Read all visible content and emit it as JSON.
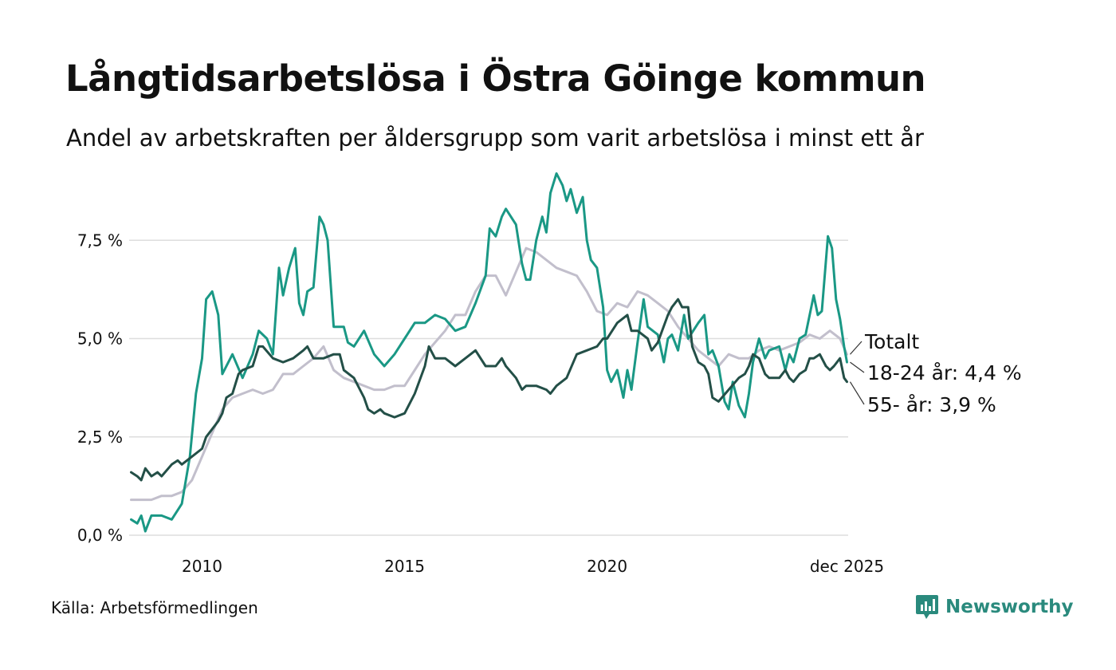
{
  "title": "Långtidsarbetslösa i Östra Göinge kommun",
  "subtitle": "Andel av arbetskraften per åldersgrupp som varit arbetslösa i minst ett år",
  "source": "Källa: Arbetsförmedlingen",
  "brand": "Newsworthy",
  "colors": {
    "brand": "#2a8a7d",
    "grid": "#dddddd"
  },
  "chart_data": {
    "type": "line",
    "xlim": [
      2008.2,
      2025.95
    ],
    "ylim": [
      0,
      9.25
    ],
    "x_ticks": [
      {
        "value": 2010,
        "label": "2010"
      },
      {
        "value": 2015,
        "label": "2015"
      },
      {
        "value": 2020,
        "label": "2020"
      },
      {
        "value": 2025.92,
        "label": "dec 2025"
      }
    ],
    "y_ticks": [
      {
        "value": 0,
        "label": "0,0 %"
      },
      {
        "value": 2.5,
        "label": "2,5 %"
      },
      {
        "value": 5,
        "label": "5,0 %"
      },
      {
        "value": 7.5,
        "label": "7,5 %"
      }
    ],
    "series": [
      {
        "name": "Totalt",
        "label": "Totalt",
        "color": "#c2bfcc",
        "points": [
          [
            2008.25,
            0.9
          ],
          [
            2008.5,
            0.9
          ],
          [
            2008.75,
            0.9
          ],
          [
            2009.0,
            1.0
          ],
          [
            2009.25,
            1.0
          ],
          [
            2009.5,
            1.1
          ],
          [
            2009.75,
            1.4
          ],
          [
            2010.0,
            2.0
          ],
          [
            2010.25,
            2.6
          ],
          [
            2010.5,
            3.2
          ],
          [
            2010.75,
            3.5
          ],
          [
            2011.0,
            3.6
          ],
          [
            2011.25,
            3.7
          ],
          [
            2011.5,
            3.6
          ],
          [
            2011.75,
            3.7
          ],
          [
            2012.0,
            4.1
          ],
          [
            2012.25,
            4.1
          ],
          [
            2012.5,
            4.3
          ],
          [
            2012.75,
            4.5
          ],
          [
            2013.0,
            4.8
          ],
          [
            2013.25,
            4.2
          ],
          [
            2013.5,
            4.0
          ],
          [
            2013.75,
            3.9
          ],
          [
            2014.0,
            3.8
          ],
          [
            2014.25,
            3.7
          ],
          [
            2014.5,
            3.7
          ],
          [
            2014.75,
            3.8
          ],
          [
            2015.0,
            3.8
          ],
          [
            2015.25,
            4.2
          ],
          [
            2015.5,
            4.6
          ],
          [
            2015.75,
            4.9
          ],
          [
            2016.0,
            5.2
          ],
          [
            2016.25,
            5.6
          ],
          [
            2016.5,
            5.6
          ],
          [
            2016.75,
            6.2
          ],
          [
            2017.0,
            6.6
          ],
          [
            2017.25,
            6.6
          ],
          [
            2017.5,
            6.1
          ],
          [
            2017.75,
            6.7
          ],
          [
            2018.0,
            7.3
          ],
          [
            2018.25,
            7.2
          ],
          [
            2018.5,
            7.0
          ],
          [
            2018.75,
            6.8
          ],
          [
            2019.0,
            6.7
          ],
          [
            2019.25,
            6.6
          ],
          [
            2019.5,
            6.2
          ],
          [
            2019.75,
            5.7
          ],
          [
            2020.0,
            5.6
          ],
          [
            2020.25,
            5.9
          ],
          [
            2020.5,
            5.8
          ],
          [
            2020.75,
            6.2
          ],
          [
            2021.0,
            6.1
          ],
          [
            2021.25,
            5.9
          ],
          [
            2021.5,
            5.7
          ],
          [
            2021.75,
            5.3
          ],
          [
            2022.0,
            5.0
          ],
          [
            2022.25,
            4.7
          ],
          [
            2022.5,
            4.5
          ],
          [
            2022.75,
            4.3
          ],
          [
            2023.0,
            4.6
          ],
          [
            2023.25,
            4.5
          ],
          [
            2023.5,
            4.5
          ],
          [
            2023.75,
            4.7
          ],
          [
            2024.0,
            4.8
          ],
          [
            2024.25,
            4.7
          ],
          [
            2024.5,
            4.8
          ],
          [
            2024.75,
            4.9
          ],
          [
            2025.0,
            5.1
          ],
          [
            2025.25,
            5.0
          ],
          [
            2025.5,
            5.2
          ],
          [
            2025.75,
            5.0
          ],
          [
            2025.92,
            4.6
          ]
        ]
      },
      {
        "name": "18-24 år",
        "label": "18-24 år: 4,4 %",
        "color": "#1a9885",
        "points": [
          [
            2008.25,
            0.4
          ],
          [
            2008.4,
            0.3
          ],
          [
            2008.5,
            0.5
          ],
          [
            2008.6,
            0.1
          ],
          [
            2008.75,
            0.5
          ],
          [
            2009.0,
            0.5
          ],
          [
            2009.25,
            0.4
          ],
          [
            2009.5,
            0.8
          ],
          [
            2009.7,
            2.0
          ],
          [
            2009.85,
            3.6
          ],
          [
            2010.0,
            4.5
          ],
          [
            2010.1,
            6.0
          ],
          [
            2010.25,
            6.2
          ],
          [
            2010.4,
            5.6
          ],
          [
            2010.5,
            4.1
          ],
          [
            2010.75,
            4.6
          ],
          [
            2011.0,
            4.0
          ],
          [
            2011.25,
            4.6
          ],
          [
            2011.4,
            5.2
          ],
          [
            2011.6,
            5.0
          ],
          [
            2011.75,
            4.6
          ],
          [
            2011.9,
            6.8
          ],
          [
            2012.0,
            6.1
          ],
          [
            2012.15,
            6.8
          ],
          [
            2012.3,
            7.3
          ],
          [
            2012.4,
            5.9
          ],
          [
            2012.5,
            5.6
          ],
          [
            2012.6,
            6.2
          ],
          [
            2012.75,
            6.3
          ],
          [
            2012.9,
            8.1
          ],
          [
            2013.0,
            7.9
          ],
          [
            2013.1,
            7.5
          ],
          [
            2013.25,
            5.3
          ],
          [
            2013.5,
            5.3
          ],
          [
            2013.6,
            4.9
          ],
          [
            2013.75,
            4.8
          ],
          [
            2014.0,
            5.2
          ],
          [
            2014.25,
            4.6
          ],
          [
            2014.5,
            4.3
          ],
          [
            2014.75,
            4.6
          ],
          [
            2015.0,
            5.0
          ],
          [
            2015.25,
            5.4
          ],
          [
            2015.5,
            5.4
          ],
          [
            2015.75,
            5.6
          ],
          [
            2016.0,
            5.5
          ],
          [
            2016.25,
            5.2
          ],
          [
            2016.5,
            5.3
          ],
          [
            2016.75,
            5.9
          ],
          [
            2017.0,
            6.6
          ],
          [
            2017.1,
            7.8
          ],
          [
            2017.25,
            7.6
          ],
          [
            2017.4,
            8.1
          ],
          [
            2017.5,
            8.3
          ],
          [
            2017.75,
            7.9
          ],
          [
            2017.9,
            6.9
          ],
          [
            2018.0,
            6.5
          ],
          [
            2018.1,
            6.5
          ],
          [
            2018.25,
            7.5
          ],
          [
            2018.4,
            8.1
          ],
          [
            2018.5,
            7.7
          ],
          [
            2018.6,
            8.7
          ],
          [
            2018.75,
            9.2
          ],
          [
            2018.9,
            8.9
          ],
          [
            2019.0,
            8.5
          ],
          [
            2019.1,
            8.8
          ],
          [
            2019.25,
            8.2
          ],
          [
            2019.4,
            8.6
          ],
          [
            2019.5,
            7.5
          ],
          [
            2019.6,
            7.0
          ],
          [
            2019.75,
            6.8
          ],
          [
            2019.9,
            5.8
          ],
          [
            2020.0,
            4.2
          ],
          [
            2020.1,
            3.9
          ],
          [
            2020.25,
            4.2
          ],
          [
            2020.4,
            3.5
          ],
          [
            2020.5,
            4.2
          ],
          [
            2020.6,
            3.7
          ],
          [
            2020.75,
            4.9
          ],
          [
            2020.9,
            6.0
          ],
          [
            2021.0,
            5.3
          ],
          [
            2021.25,
            5.1
          ],
          [
            2021.4,
            4.4
          ],
          [
            2021.5,
            5.0
          ],
          [
            2021.6,
            5.1
          ],
          [
            2021.75,
            4.7
          ],
          [
            2021.9,
            5.6
          ],
          [
            2022.0,
            5.0
          ],
          [
            2022.25,
            5.4
          ],
          [
            2022.4,
            5.6
          ],
          [
            2022.5,
            4.6
          ],
          [
            2022.6,
            4.7
          ],
          [
            2022.75,
            4.3
          ],
          [
            2022.9,
            3.4
          ],
          [
            2023.0,
            3.2
          ],
          [
            2023.1,
            3.9
          ],
          [
            2023.25,
            3.3
          ],
          [
            2023.4,
            3.0
          ],
          [
            2023.5,
            3.6
          ],
          [
            2023.6,
            4.4
          ],
          [
            2023.75,
            5.0
          ],
          [
            2023.9,
            4.5
          ],
          [
            2024.0,
            4.7
          ],
          [
            2024.25,
            4.8
          ],
          [
            2024.4,
            4.2
          ],
          [
            2024.5,
            4.6
          ],
          [
            2024.6,
            4.4
          ],
          [
            2024.75,
            5.0
          ],
          [
            2024.9,
            5.1
          ],
          [
            2025.0,
            5.6
          ],
          [
            2025.1,
            6.1
          ],
          [
            2025.2,
            5.6
          ],
          [
            2025.3,
            5.7
          ],
          [
            2025.45,
            7.6
          ],
          [
            2025.55,
            7.3
          ],
          [
            2025.65,
            6.0
          ],
          [
            2025.75,
            5.5
          ],
          [
            2025.85,
            4.8
          ],
          [
            2025.92,
            4.4
          ]
        ]
      },
      {
        "name": "55- år",
        "label": "55- år: 3,9 %",
        "color": "#234f47",
        "points": [
          [
            2008.25,
            1.6
          ],
          [
            2008.4,
            1.5
          ],
          [
            2008.5,
            1.4
          ],
          [
            2008.6,
            1.7
          ],
          [
            2008.75,
            1.5
          ],
          [
            2008.9,
            1.6
          ],
          [
            2009.0,
            1.5
          ],
          [
            2009.25,
            1.8
          ],
          [
            2009.4,
            1.9
          ],
          [
            2009.5,
            1.8
          ],
          [
            2009.75,
            2.0
          ],
          [
            2010.0,
            2.2
          ],
          [
            2010.1,
            2.5
          ],
          [
            2010.25,
            2.7
          ],
          [
            2010.4,
            2.9
          ],
          [
            2010.5,
            3.1
          ],
          [
            2010.6,
            3.5
          ],
          [
            2010.75,
            3.6
          ],
          [
            2010.9,
            4.1
          ],
          [
            2011.0,
            4.2
          ],
          [
            2011.25,
            4.3
          ],
          [
            2011.4,
            4.8
          ],
          [
            2011.5,
            4.8
          ],
          [
            2011.75,
            4.5
          ],
          [
            2012.0,
            4.4
          ],
          [
            2012.25,
            4.5
          ],
          [
            2012.5,
            4.7
          ],
          [
            2012.6,
            4.8
          ],
          [
            2012.75,
            4.5
          ],
          [
            2013.0,
            4.5
          ],
          [
            2013.25,
            4.6
          ],
          [
            2013.4,
            4.6
          ],
          [
            2013.5,
            4.2
          ],
          [
            2013.75,
            4.0
          ],
          [
            2014.0,
            3.5
          ],
          [
            2014.1,
            3.2
          ],
          [
            2014.25,
            3.1
          ],
          [
            2014.4,
            3.2
          ],
          [
            2014.5,
            3.1
          ],
          [
            2014.75,
            3.0
          ],
          [
            2015.0,
            3.1
          ],
          [
            2015.25,
            3.6
          ],
          [
            2015.5,
            4.3
          ],
          [
            2015.6,
            4.8
          ],
          [
            2015.75,
            4.5
          ],
          [
            2016.0,
            4.5
          ],
          [
            2016.25,
            4.3
          ],
          [
            2016.5,
            4.5
          ],
          [
            2016.75,
            4.7
          ],
          [
            2017.0,
            4.3
          ],
          [
            2017.25,
            4.3
          ],
          [
            2017.4,
            4.5
          ],
          [
            2017.5,
            4.3
          ],
          [
            2017.75,
            4.0
          ],
          [
            2017.9,
            3.7
          ],
          [
            2018.0,
            3.8
          ],
          [
            2018.25,
            3.8
          ],
          [
            2018.5,
            3.7
          ],
          [
            2018.6,
            3.6
          ],
          [
            2018.75,
            3.8
          ],
          [
            2019.0,
            4.0
          ],
          [
            2019.25,
            4.6
          ],
          [
            2019.5,
            4.7
          ],
          [
            2019.75,
            4.8
          ],
          [
            2019.9,
            5.0
          ],
          [
            2020.0,
            5.0
          ],
          [
            2020.25,
            5.4
          ],
          [
            2020.5,
            5.6
          ],
          [
            2020.6,
            5.2
          ],
          [
            2020.75,
            5.2
          ],
          [
            2021.0,
            5.0
          ],
          [
            2021.1,
            4.7
          ],
          [
            2021.25,
            4.9
          ],
          [
            2021.5,
            5.6
          ],
          [
            2021.6,
            5.8
          ],
          [
            2021.75,
            6.0
          ],
          [
            2021.85,
            5.8
          ],
          [
            2022.0,
            5.8
          ],
          [
            2022.1,
            4.8
          ],
          [
            2022.25,
            4.4
          ],
          [
            2022.4,
            4.3
          ],
          [
            2022.5,
            4.1
          ],
          [
            2022.6,
            3.5
          ],
          [
            2022.75,
            3.4
          ],
          [
            2023.0,
            3.7
          ],
          [
            2023.25,
            4.0
          ],
          [
            2023.4,
            4.1
          ],
          [
            2023.5,
            4.3
          ],
          [
            2023.6,
            4.6
          ],
          [
            2023.75,
            4.5
          ],
          [
            2023.9,
            4.1
          ],
          [
            2024.0,
            4.0
          ],
          [
            2024.25,
            4.0
          ],
          [
            2024.4,
            4.2
          ],
          [
            2024.5,
            4.0
          ],
          [
            2024.6,
            3.9
          ],
          [
            2024.75,
            4.1
          ],
          [
            2024.9,
            4.2
          ],
          [
            2025.0,
            4.5
          ],
          [
            2025.1,
            4.5
          ],
          [
            2025.25,
            4.6
          ],
          [
            2025.4,
            4.3
          ],
          [
            2025.5,
            4.2
          ],
          [
            2025.6,
            4.3
          ],
          [
            2025.75,
            4.5
          ],
          [
            2025.85,
            4.0
          ],
          [
            2025.92,
            3.9
          ]
        ]
      }
    ]
  }
}
